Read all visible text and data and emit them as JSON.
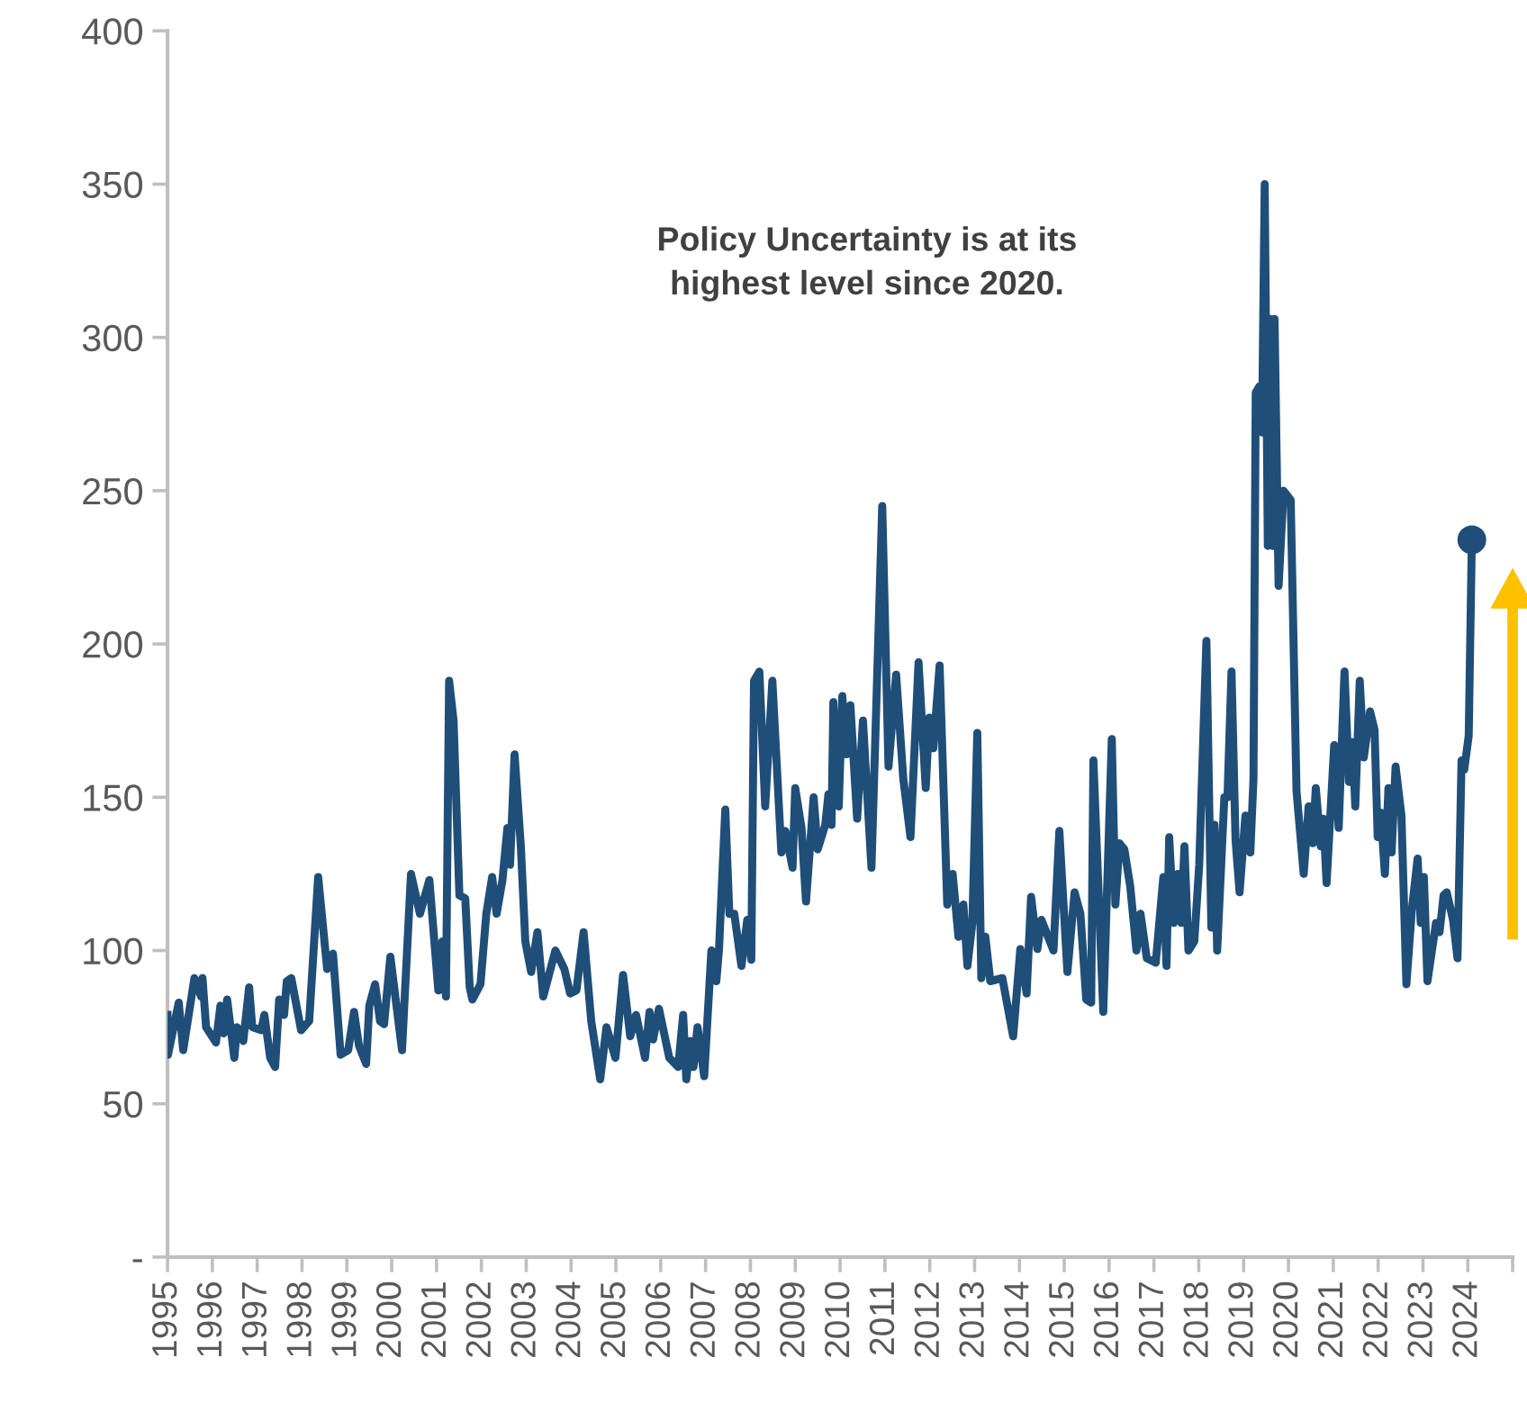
{
  "chart_data": {
    "type": "line",
    "annotations": [
      "Policy Uncertainty is at its\nhighest level since 2020."
    ],
    "xlim": [
      1995,
      2025
    ],
    "xticks": [
      1995,
      1996,
      1997,
      1998,
      1999,
      2000,
      2001,
      2002,
      2003,
      2004,
      2005,
      2006,
      2007,
      2008,
      2009,
      2010,
      2011,
      2012,
      2013,
      2014,
      2015,
      2016,
      2017,
      2018,
      2019,
      2020,
      2021,
      2022,
      2023,
      2024,
      {
        "value": 2025,
        "label": null
      }
    ],
    "ylim": [
      0,
      400
    ],
    "yticks": [
      {
        "value": 0,
        "label": "-"
      },
      50,
      100,
      150,
      200,
      250,
      300,
      350,
      400
    ],
    "grid": false,
    "legend": false,
    "series": [
      {
        "color": "#1f4e79",
        "marker": "none",
        "x": [
          1995.0,
          1995.01,
          1995.25,
          1995.35,
          1995.6,
          1995.75,
          1995.78,
          1995.86,
          1996.08,
          1996.18,
          1996.25,
          1996.33,
          1996.49,
          1996.55,
          1996.69,
          1996.82,
          1996.89,
          1997.09,
          1997.16,
          1997.29,
          1997.4,
          1997.49,
          1997.6,
          1997.66,
          1997.76,
          1997.98,
          1998.16,
          1998.36,
          1998.56,
          1998.69,
          1998.86,
          1999.03,
          1999.16,
          1999.27,
          1999.43,
          1999.5,
          1999.63,
          1999.74,
          1999.83,
          1999.97,
          2000.23,
          2000.43,
          2000.63,
          2000.84,
          2001.04,
          2001.13,
          2001.21,
          2001.28,
          2001.38,
          2001.51,
          2001.64,
          2001.74,
          2001.8,
          2001.98,
          2002.11,
          2002.24,
          2002.34,
          2002.47,
          2002.58,
          2002.64,
          2002.74,
          2002.88,
          2002.98,
          2003.11,
          2003.25,
          2003.38,
          2003.65,
          2003.85,
          2003.98,
          2004.12,
          2004.28,
          2004.45,
          2004.65,
          2004.79,
          2004.99,
          2005.16,
          2005.32,
          2005.45,
          2005.65,
          2005.75,
          2005.83,
          2005.96,
          2006.19,
          2006.39,
          2006.5,
          2006.57,
          2006.66,
          2006.73,
          2006.82,
          2006.97,
          2007.13,
          2007.24,
          2007.3,
          2007.44,
          2007.53,
          2007.64,
          2007.8,
          2007.93,
          2008.02,
          2008.08,
          2008.2,
          2008.33,
          2008.49,
          2008.69,
          2008.78,
          2008.94,
          2009.0,
          2009.14,
          2009.24,
          2009.41,
          2009.5,
          2009.67,
          2009.74,
          2009.81,
          2009.85,
          2009.97,
          2010.05,
          2010.14,
          2010.23,
          2010.38,
          2010.51,
          2010.7,
          2010.94,
          2011.08,
          2011.25,
          2011.41,
          2011.57,
          2011.75,
          2011.91,
          2011.99,
          2012.08,
          2012.22,
          2012.39,
          2012.51,
          2012.64,
          2012.75,
          2012.84,
          2012.95,
          2013.06,
          2013.15,
          2013.24,
          2013.35,
          2013.62,
          2013.86,
          2014.02,
          2014.16,
          2014.26,
          2014.4,
          2014.49,
          2014.76,
          2014.89,
          2015.07,
          2015.23,
          2015.36,
          2015.49,
          2015.6,
          2015.65,
          2015.87,
          2016.06,
          2016.14,
          2016.23,
          2016.34,
          2016.47,
          2016.61,
          2016.7,
          2016.84,
          2017.04,
          2017.21,
          2017.28,
          2017.34,
          2017.44,
          2017.53,
          2017.61,
          2017.68,
          2017.77,
          2017.9,
          2018.01,
          2018.17,
          2018.28,
          2018.35,
          2018.41,
          2018.57,
          2018.64,
          2018.73,
          2018.82,
          2018.91,
          2019.04,
          2019.15,
          2019.22,
          2019.27,
          2019.35,
          2019.41,
          2019.47,
          2019.54,
          2019.59,
          2019.65,
          2019.69,
          2019.78,
          2019.89,
          2020.05,
          2020.18,
          2020.34,
          2020.45,
          2020.54,
          2020.61,
          2020.72,
          2020.78,
          2020.85,
          2021.02,
          2021.12,
          2021.25,
          2021.35,
          2021.43,
          2021.49,
          2021.59,
          2021.68,
          2021.82,
          2021.92,
          2021.99,
          2022.06,
          2022.15,
          2022.23,
          2022.3,
          2022.39,
          2022.52,
          2022.63,
          2022.75,
          2022.88,
          2022.95,
          2023.02,
          2023.1,
          2023.29,
          2023.37,
          2023.46,
          2023.53,
          2023.67,
          2023.77,
          2023.86,
          2023.92,
          2024.02,
          2024.09
        ],
        "values": [
          79,
          66,
          83,
          67.5,
          91,
          85,
          91,
          75,
          70,
          82,
          73,
          84,
          65,
          75,
          70.5,
          88,
          75,
          74,
          79,
          65,
          62,
          84,
          79,
          90,
          91,
          74,
          77,
          124,
          94,
          99,
          66,
          67.5,
          80,
          69,
          63,
          82,
          89,
          77,
          76,
          98,
          67.5,
          125,
          112,
          123,
          87,
          103,
          85,
          188,
          175,
          118,
          117,
          88,
          84,
          89,
          112,
          124,
          112,
          123,
          140,
          128,
          164,
          134,
          103,
          93,
          106,
          85,
          100,
          94,
          86,
          87,
          106,
          77,
          58,
          75,
          65,
          92,
          72,
          79,
          65,
          80,
          71,
          81,
          65,
          62,
          79,
          58,
          70.5,
          62,
          75,
          59,
          100,
          90,
          100.5,
          146,
          112,
          112,
          95,
          110,
          97,
          188,
          191,
          147,
          188,
          132,
          139,
          127,
          153,
          140,
          116,
          150,
          133,
          141,
          151,
          141,
          181,
          147,
          183,
          164,
          180,
          143,
          175,
          127,
          245,
          160,
          190,
          156,
          137,
          194,
          153,
          176,
          166,
          193,
          115,
          125,
          104.5,
          115,
          95,
          109,
          171,
          91,
          104.5,
          90,
          91,
          72,
          100.5,
          86,
          117.5,
          100.5,
          110,
          100,
          139,
          93,
          119,
          112,
          84,
          83,
          162,
          80,
          169,
          115,
          135,
          133,
          121,
          100,
          112,
          97.5,
          96,
          124,
          95,
          137,
          109,
          125,
          109,
          134,
          100,
          103,
          128,
          201,
          107.5,
          141,
          100,
          150,
          150,
          191,
          136,
          119,
          144,
          132,
          156,
          282,
          284,
          269,
          350,
          232,
          306,
          232,
          306,
          219,
          250,
          247,
          152,
          125,
          147,
          135,
          153,
          134,
          143,
          122,
          167,
          140,
          191,
          155,
          168,
          147,
          188,
          163,
          178,
          172,
          137,
          145,
          125,
          153,
          132,
          160,
          144,
          89,
          113,
          130,
          109,
          124,
          90,
          109,
          106,
          118,
          119,
          110,
          97.5,
          162,
          159,
          170,
          234
        ]
      },
      {
        "type": "scatter",
        "color": "#1f4e79",
        "marker": "circle",
        "x": [
          2024.09
        ],
        "values": [
          234
        ]
      }
    ]
  }
}
